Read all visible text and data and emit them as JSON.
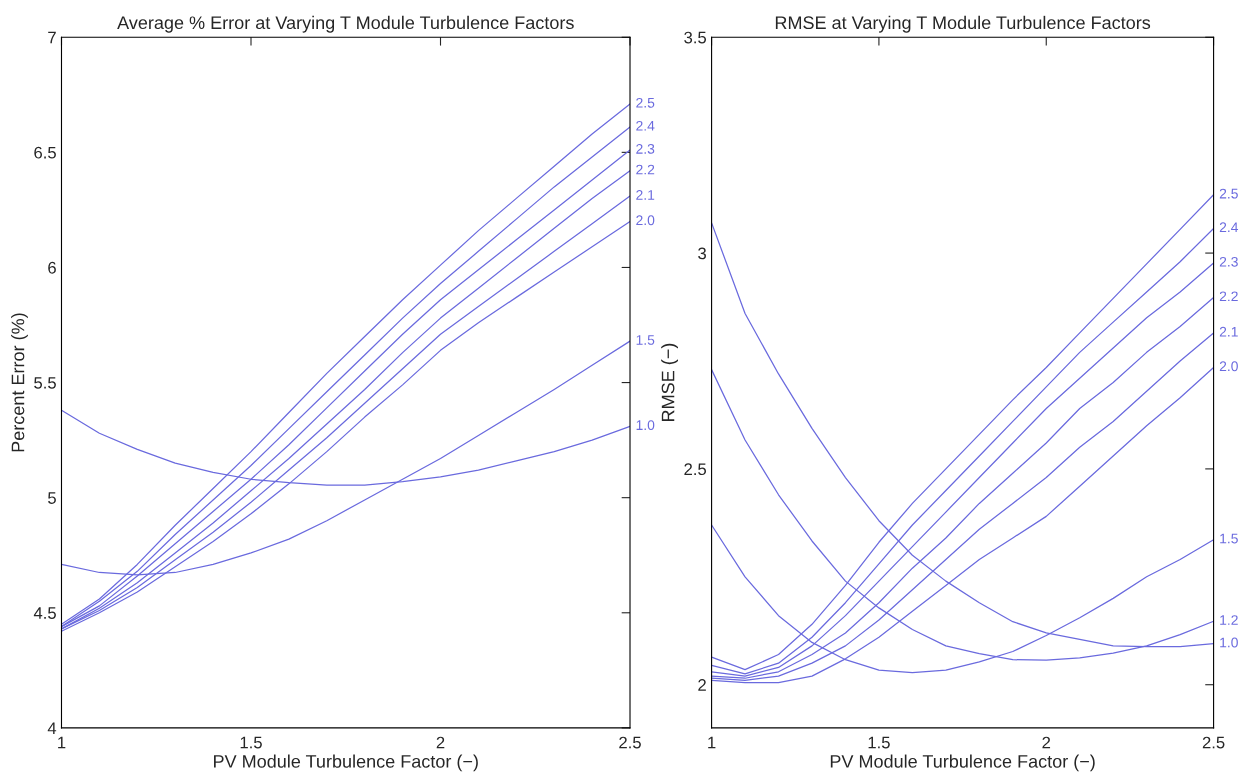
{
  "chart_data": [
    {
      "type": "line",
      "title": "Average % Error at Varying T Module Turbulence Factors",
      "xlabel": "PV Module Turbulence Factor (−)",
      "ylabel": "Percent Error (%)",
      "x": [
        1.0,
        1.1,
        1.2,
        1.3,
        1.4,
        1.5,
        1.6,
        1.7,
        1.8,
        1.9,
        2.0,
        2.1,
        2.2,
        2.3,
        2.4,
        2.5
      ],
      "xlim": [
        1,
        2.5
      ],
      "xticks": [
        1,
        1.5,
        2,
        2.5
      ],
      "ylim": [
        4,
        7
      ],
      "yticks": [
        4,
        4.5,
        5,
        5.5,
        6,
        6.5,
        7
      ],
      "grid": false,
      "legend": false,
      "series": [
        {
          "name": "2.5",
          "color": "#6a6ade",
          "values": [
            4.45,
            4.56,
            4.71,
            4.88,
            5.04,
            5.2,
            5.37,
            5.54,
            5.7,
            5.86,
            6.01,
            6.16,
            6.3,
            6.44,
            6.58,
            6.71
          ]
        },
        {
          "name": "2.4",
          "color": "#6a6ade",
          "values": [
            4.44,
            4.55,
            4.68,
            4.84,
            4.99,
            5.14,
            5.3,
            5.46,
            5.62,
            5.78,
            5.93,
            6.07,
            6.21,
            6.35,
            6.48,
            6.61
          ]
        },
        {
          "name": "2.3",
          "color": "#6a6ade",
          "values": [
            4.44,
            4.53,
            4.66,
            4.8,
            4.94,
            5.08,
            5.23,
            5.39,
            5.55,
            5.71,
            5.86,
            5.99,
            6.12,
            6.25,
            6.38,
            6.51
          ]
        },
        {
          "name": "2.2",
          "color": "#6a6ade",
          "values": [
            4.43,
            4.52,
            4.63,
            4.76,
            4.89,
            5.03,
            5.17,
            5.32,
            5.47,
            5.63,
            5.78,
            5.91,
            6.04,
            6.17,
            6.3,
            6.42
          ]
        },
        {
          "name": "2.1",
          "color": "#6a6ade",
          "values": [
            4.43,
            4.51,
            4.61,
            4.73,
            4.85,
            4.98,
            5.12,
            5.26,
            5.41,
            5.56,
            5.71,
            5.83,
            5.95,
            6.07,
            6.19,
            6.31
          ]
        },
        {
          "name": "2.0",
          "color": "#6a6ade",
          "values": [
            4.42,
            4.5,
            4.59,
            4.7,
            4.81,
            4.93,
            5.06,
            5.2,
            5.35,
            5.49,
            5.64,
            5.76,
            5.87,
            5.98,
            6.09,
            6.2
          ]
        },
        {
          "name": "1.5",
          "color": "#6a6ade",
          "values": [
            4.71,
            4.675,
            4.665,
            4.675,
            4.71,
            4.76,
            4.82,
            4.9,
            4.99,
            5.08,
            5.17,
            5.27,
            5.37,
            5.47,
            5.575,
            5.68
          ]
        },
        {
          "name": "1.0",
          "color": "#6a6ade",
          "values": [
            5.38,
            5.28,
            5.21,
            5.15,
            5.11,
            5.08,
            5.065,
            5.055,
            5.055,
            5.07,
            5.09,
            5.12,
            5.16,
            5.2,
            5.25,
            5.31
          ]
        }
      ]
    },
    {
      "type": "line",
      "title": "RMSE at Varying T Module Turbulence Factors",
      "xlabel": "PV Module Turbulence Factor (−)",
      "ylabel": "RMSE (−)",
      "x": [
        1.0,
        1.1,
        1.2,
        1.3,
        1.4,
        1.5,
        1.6,
        1.7,
        1.8,
        1.9,
        2.0,
        2.1,
        2.2,
        2.3,
        2.4,
        2.5
      ],
      "xlim": [
        1,
        2.5
      ],
      "xticks": [
        1,
        1.5,
        2,
        2.5
      ],
      "ylim": [
        1.9,
        3.5
      ],
      "yticks": [
        2,
        2.5,
        3,
        3.5
      ],
      "grid": false,
      "legend": false,
      "series": [
        {
          "name": "2.5",
          "color": "#6a6ade",
          "values": [
            2.064,
            2.035,
            2.07,
            2.14,
            2.23,
            2.33,
            2.42,
            2.5,
            2.58,
            2.66,
            2.735,
            2.815,
            2.895,
            2.975,
            3.055,
            3.135
          ]
        },
        {
          "name": "2.4",
          "color": "#6a6ade",
          "values": [
            2.045,
            2.025,
            2.05,
            2.11,
            2.19,
            2.28,
            2.37,
            2.45,
            2.53,
            2.61,
            2.69,
            2.77,
            2.84,
            2.91,
            2.98,
            3.057
          ]
        },
        {
          "name": "2.3",
          "color": "#6a6ade",
          "values": [
            2.03,
            2.02,
            2.04,
            2.09,
            2.16,
            2.24,
            2.32,
            2.4,
            2.48,
            2.56,
            2.64,
            2.71,
            2.78,
            2.85,
            2.91,
            2.977
          ]
        },
        {
          "name": "2.2",
          "color": "#6a6ade",
          "values": [
            2.02,
            2.015,
            2.03,
            2.07,
            2.12,
            2.19,
            2.27,
            2.34,
            2.42,
            2.49,
            2.56,
            2.64,
            2.7,
            2.77,
            2.83,
            2.897
          ]
        },
        {
          "name": "2.1",
          "color": "#6a6ade",
          "values": [
            2.015,
            2.01,
            2.02,
            2.05,
            2.09,
            2.15,
            2.22,
            2.29,
            2.36,
            2.42,
            2.48,
            2.55,
            2.61,
            2.68,
            2.75,
            2.815
          ]
        },
        {
          "name": "2.0",
          "color": "#6a6ade",
          "values": [
            2.01,
            2.005,
            2.005,
            2.02,
            2.06,
            2.11,
            2.17,
            2.23,
            2.29,
            2.34,
            2.39,
            2.46,
            2.53,
            2.6,
            2.665,
            2.735
          ]
        },
        {
          "name": "1.5",
          "color": "#6a6ade",
          "values": [
            2.37,
            2.25,
            2.16,
            2.098,
            2.058,
            2.034,
            2.028,
            2.034,
            2.053,
            2.077,
            2.114,
            2.155,
            2.2,
            2.25,
            2.29,
            2.336
          ]
        },
        {
          "name": "1.2",
          "color": "#6a6ade",
          "values": [
            2.73,
            2.567,
            2.44,
            2.333,
            2.24,
            2.178,
            2.128,
            2.09,
            2.072,
            2.058,
            2.057,
            2.062,
            2.073,
            2.09,
            2.116,
            2.147
          ]
        },
        {
          "name": "1.0",
          "color": "#6a6ade",
          "values": [
            3.07,
            2.86,
            2.72,
            2.594,
            2.48,
            2.38,
            2.3,
            2.24,
            2.19,
            2.146,
            2.12,
            2.105,
            2.09,
            2.088,
            2.088,
            2.095
          ]
        }
      ]
    }
  ]
}
